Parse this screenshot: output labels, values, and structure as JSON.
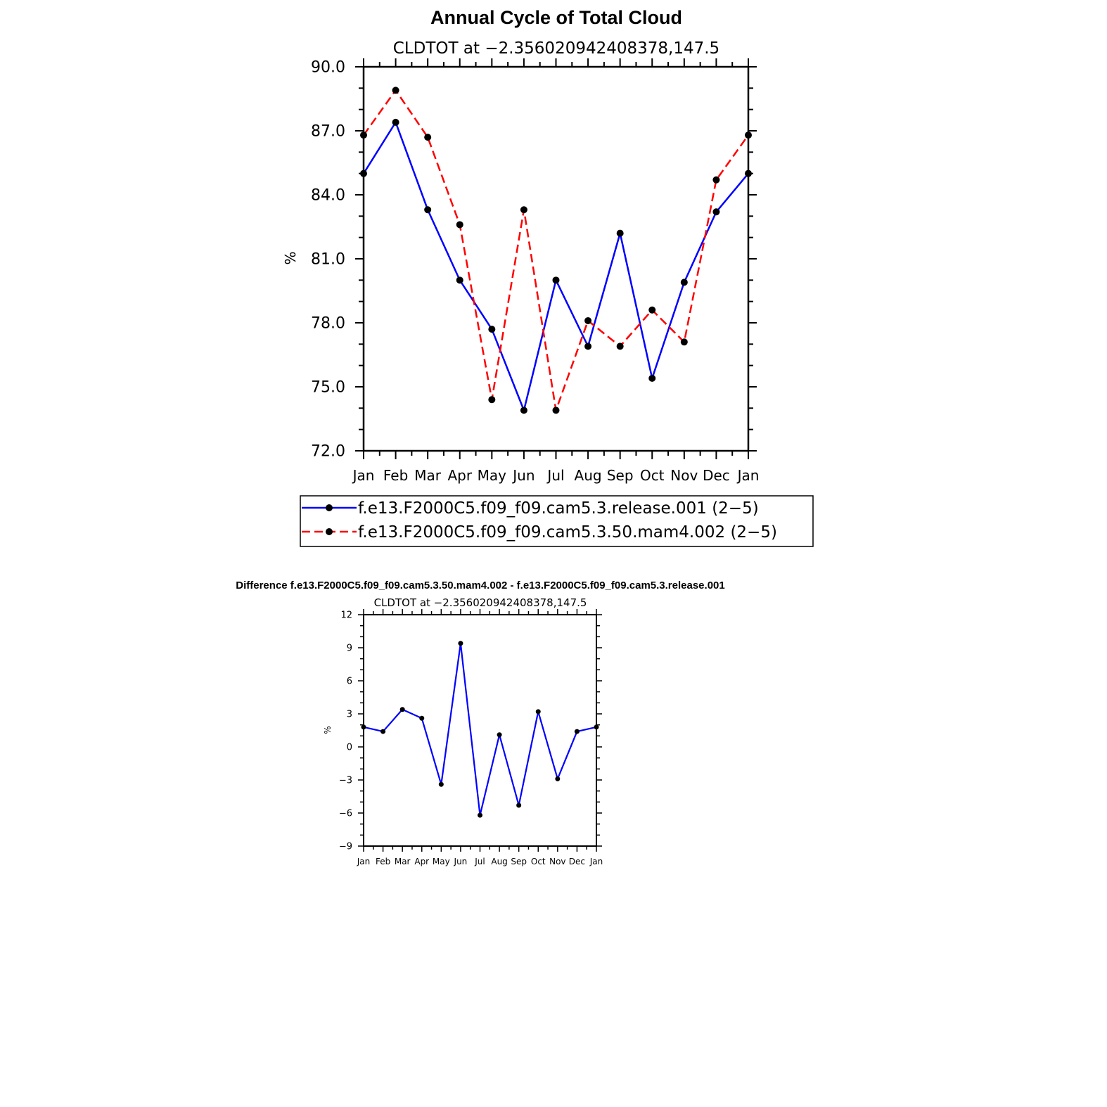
{
  "chart_data": [
    {
      "type": "line",
      "title": "Annual Cycle of Total Cloud",
      "subtitle": "CLDTOT at −2.356020942408378,147.5",
      "ylabel": "%",
      "xlabel": "",
      "categories": [
        "Jan",
        "Feb",
        "Mar",
        "Apr",
        "May",
        "Jun",
        "Jul",
        "Aug",
        "Sep",
        "Oct",
        "Nov",
        "Dec",
        "Jan"
      ],
      "ylim": [
        72,
        90
      ],
      "yticks": [
        "72.0",
        "75.0",
        "78.0",
        "81.0",
        "84.0",
        "87.0",
        "90.0"
      ],
      "grid": false,
      "legend_position": "below",
      "series": [
        {
          "name": "f.e13.F2000C5.f09_f09.cam5.3.release.001 (2−5)",
          "color": "#0000ff",
          "dash": "solid",
          "values": [
            85.0,
            87.4,
            83.3,
            80.0,
            77.7,
            73.9,
            80.0,
            76.9,
            82.2,
            75.4,
            79.9,
            83.2,
            85.0
          ]
        },
        {
          "name": "f.e13.F2000C5.f09_f09.cam5.3.50.mam4.002 (2−5)",
          "color": "#ff0000",
          "dash": "dashed",
          "values": [
            86.8,
            88.9,
            86.7,
            82.6,
            74.4,
            83.3,
            73.9,
            78.1,
            76.9,
            78.6,
            77.1,
            84.7,
            86.8
          ]
        }
      ]
    },
    {
      "type": "line",
      "title": "Difference f.e13.F2000C5.f09_f09.cam5.3.50.mam4.002 - f.e13.F2000C5.f09_f09.cam5.3.release.001",
      "subtitle": "CLDTOT at −2.356020942408378,147.5",
      "ylabel": "%",
      "xlabel": "",
      "categories": [
        "Jan",
        "Feb",
        "Mar",
        "Apr",
        "May",
        "Jun",
        "Jul",
        "Aug",
        "Sep",
        "Oct",
        "Nov",
        "Dec",
        "Jan"
      ],
      "ylim": [
        -9,
        12
      ],
      "yticks": [
        "−9",
        "−6",
        "−3",
        "0",
        "3",
        "6",
        "9",
        "12"
      ],
      "grid": false,
      "series": [
        {
          "color": "#0000ff",
          "dash": "solid",
          "values": [
            1.8,
            1.4,
            3.4,
            2.6,
            -3.4,
            9.4,
            -6.2,
            1.1,
            -5.3,
            3.2,
            -2.9,
            1.4,
            1.8
          ]
        }
      ]
    }
  ]
}
